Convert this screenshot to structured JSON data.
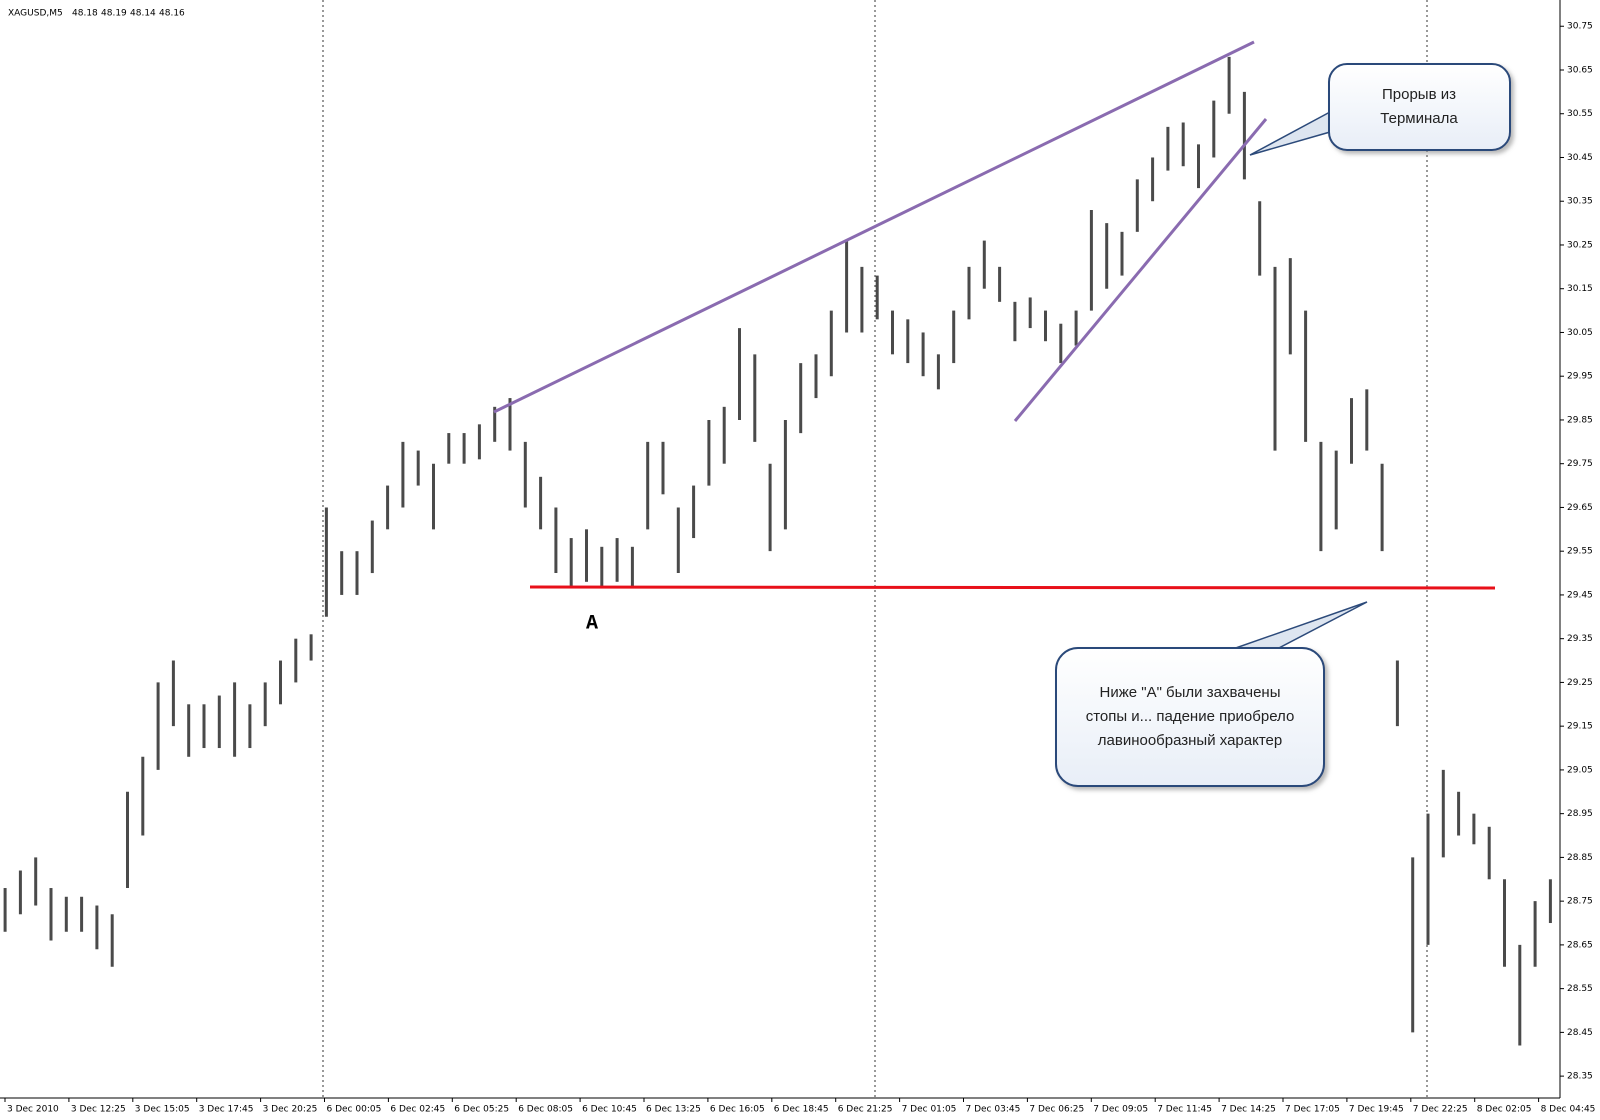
{
  "chart_data": {
    "type": "hlbar",
    "title": "XAGUSD,M5",
    "quote": [
      48.18,
      48.19,
      48.14,
      48.16
    ],
    "color": "#4a4a4a",
    "low": [
      28.68,
      28.72,
      28.74,
      28.66,
      28.68,
      28.68,
      28.64,
      28.6,
      28.78,
      28.9,
      29.05,
      29.15,
      29.08,
      29.1,
      29.1,
      29.08,
      29.1,
      29.15,
      29.2,
      29.25,
      29.3,
      29.4,
      29.45,
      29.45,
      29.5,
      29.6,
      29.65,
      29.7,
      29.6,
      29.75,
      29.75,
      29.76,
      29.8,
      29.78,
      29.65,
      29.6,
      29.5,
      29.47,
      29.48,
      29.47,
      29.48,
      29.47,
      29.6,
      29.68,
      29.5,
      29.58,
      29.7,
      29.75,
      29.85,
      29.8,
      29.55,
      29.6,
      29.82,
      29.9,
      29.95,
      30.05,
      30.05,
      30.08,
      30.0,
      29.98,
      29.95,
      29.92,
      29.98,
      30.08,
      30.15,
      30.12,
      30.03,
      30.06,
      30.03,
      29.98,
      30.02,
      30.1,
      30.15,
      30.18,
      30.28,
      30.35,
      30.42,
      30.43,
      30.38,
      30.45,
      30.55,
      30.4,
      30.18,
      29.78,
      30.0,
      29.8,
      29.55,
      29.6,
      29.75,
      29.78,
      29.55,
      29.15,
      28.45,
      28.65,
      28.85,
      28.9,
      28.88,
      28.8,
      28.6,
      28.42,
      28.6,
      28.7
    ],
    "high": [
      28.78,
      28.82,
      28.85,
      28.78,
      28.76,
      28.76,
      28.74,
      28.72,
      29.0,
      29.08,
      29.25,
      29.3,
      29.2,
      29.2,
      29.22,
      29.25,
      29.2,
      29.25,
      29.3,
      29.35,
      29.36,
      29.65,
      29.55,
      29.55,
      29.62,
      29.7,
      29.8,
      29.78,
      29.75,
      29.82,
      29.82,
      29.84,
      29.88,
      29.9,
      29.8,
      29.72,
      29.65,
      29.58,
      29.6,
      29.56,
      29.58,
      29.56,
      29.8,
      29.8,
      29.65,
      29.7,
      29.85,
      29.88,
      30.06,
      30.0,
      29.75,
      29.85,
      29.98,
      30.0,
      30.1,
      30.26,
      30.2,
      30.18,
      30.1,
      30.08,
      30.05,
      30.0,
      30.1,
      30.2,
      30.26,
      30.2,
      30.12,
      30.13,
      30.1,
      30.07,
      30.1,
      30.33,
      30.3,
      30.28,
      30.4,
      30.45,
      30.52,
      30.53,
      30.48,
      30.58,
      30.68,
      30.6,
      30.35,
      30.2,
      30.22,
      30.1,
      29.8,
      29.78,
      29.9,
      29.92,
      29.75,
      29.3,
      28.85,
      28.95,
      29.05,
      29.0,
      28.95,
      28.92,
      28.8,
      28.65,
      28.75,
      28.8
    ],
    "ylim": [
      28.3,
      30.81
    ],
    "yticks": [
      28.35,
      28.45,
      28.55,
      28.65,
      28.75,
      28.85,
      28.95,
      29.05,
      29.15,
      29.25,
      29.35,
      29.45,
      29.55,
      29.65,
      29.75,
      29.85,
      29.95,
      30.05,
      30.15,
      30.25,
      30.35,
      30.45,
      30.55,
      30.65,
      30.75
    ],
    "xticks": [
      "3 Dec 2010",
      "3 Dec 12:25",
      "3 Dec 15:05",
      "3 Dec 17:45",
      "3 Dec 20:25",
      "6 Dec 00:05",
      "6 Dec 02:45",
      "6 Dec 05:25",
      "6 Dec 08:05",
      "6 Dec 10:45",
      "6 Dec 13:25",
      "6 Dec 16:05",
      "6 Dec 18:45",
      "6 Dec 21:25",
      "7 Dec 01:05",
      "7 Dec 03:45",
      "7 Dec 06:25",
      "7 Dec 09:05",
      "7 Dec 11:45",
      "7 Dec 14:25",
      "7 Dec 17:05",
      "7 Dec 19:45",
      "7 Dec 22:25",
      "8 Dec 02:05",
      "8 Dec 04:45"
    ],
    "annotations": [
      {
        "lines": [
          "Прорыв из",
          "Терминала"
        ]
      },
      {
        "lines": [
          "Ниже \"А\" были захвачены",
          "стопы и... падение приобрело",
          "лавинообразный характер"
        ]
      }
    ],
    "level_label": "A"
  }
}
